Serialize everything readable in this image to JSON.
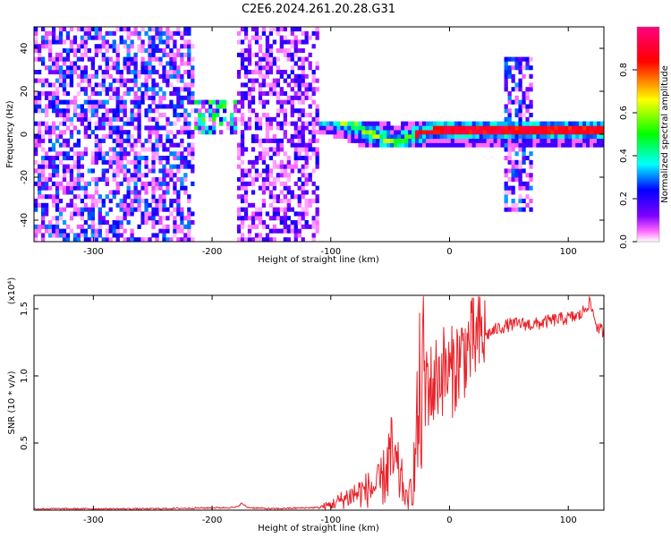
{
  "title": "C2E6.2024.261.20.28.G31",
  "chart_data": [
    {
      "type": "heatmap",
      "xlabel": "Height of straight line (km)",
      "ylabel": "Frequency (Hz)",
      "xlim": [
        -350,
        130
      ],
      "ylim": [
        -50,
        50
      ],
      "x_ticks": [
        -300,
        -200,
        -100,
        0,
        100
      ],
      "y_ticks": [
        -40,
        -20,
        0,
        20,
        40
      ],
      "colorbar": {
        "label": "Normalized spectral amplitude",
        "range": [
          0,
          1
        ],
        "ticks": [
          0.0,
          0.2,
          0.4,
          0.6,
          0.8
        ],
        "tick_labels": [
          "0.0",
          "0.2",
          "0.4",
          "0.6",
          "0.8"
        ],
        "colors": [
          "#ffffff",
          "#ff00ff",
          "#8000ff",
          "#0000ff",
          "#00ffff",
          "#00ff00",
          "#ffff00",
          "#ff0000"
        ]
      },
      "regions": [
        {
          "x_range": [
            -350,
            -215
          ],
          "y_range": [
            -50,
            50
          ],
          "level": 0.2
        },
        {
          "x_range": [
            -215,
            -180
          ],
          "y_range": [
            0,
            15
          ],
          "level": 0.35
        },
        {
          "x_range": [
            -180,
            -110
          ],
          "y_range": [
            -50,
            50
          ],
          "level": 0.15
        },
        {
          "x_range": [
            -110,
            130
          ],
          "y_range": [
            -5,
            5
          ],
          "level": 1.0
        },
        {
          "x_range": [
            45,
            70
          ],
          "y_range": [
            -35,
            35
          ],
          "level": 0.2
        }
      ],
      "ridge": {
        "x": [
          -120,
          -105,
          -90,
          -80,
          -70,
          -60,
          -50,
          -45,
          -40,
          -30,
          -20,
          -10,
          0,
          50,
          60,
          70,
          85,
          120,
          130
        ],
        "y": [
          12,
          8,
          6,
          4,
          1,
          -1,
          -3,
          -4,
          -3,
          0,
          1,
          2,
          2,
          2,
          2,
          2,
          2,
          2,
          2
        ]
      }
    },
    {
      "type": "line",
      "xlabel": "Height of straight line (km)",
      "ylabel": "SNR (10 * v/v)",
      "y_multiplier": "(x10⁴)",
      "xlim": [
        -350,
        130
      ],
      "ylim": [
        0,
        1.6
      ],
      "x_ticks": [
        -300,
        -200,
        -100,
        0,
        100
      ],
      "y_ticks": [
        0.5,
        1.0,
        1.5
      ],
      "y_tick_labels": [
        "0.5",
        "1.0",
        "1.5"
      ],
      "color": "#e8232a",
      "series": [
        {
          "x": [
            -350,
            -250,
            -180,
            -175,
            -170,
            -150,
            -110,
            -100,
            -80,
            -60,
            -55,
            -50,
            -45,
            -40,
            -35,
            -30,
            -25,
            -20,
            -15,
            -10,
            -5,
            0,
            10,
            20,
            30,
            40,
            50,
            60,
            70,
            80,
            90,
            100,
            110,
            118,
            125,
            130
          ],
          "y": [
            0.01,
            0.01,
            0.02,
            0.05,
            0.02,
            0.01,
            0.02,
            0.04,
            0.12,
            0.18,
            0.25,
            0.4,
            0.3,
            0.2,
            0.05,
            0.3,
            0.8,
            1.0,
            0.9,
            1.0,
            1.05,
            1.0,
            1.15,
            1.25,
            1.3,
            1.35,
            1.38,
            1.39,
            1.38,
            1.4,
            1.42,
            1.43,
            1.45,
            1.55,
            1.35,
            1.33
          ]
        }
      ]
    }
  ]
}
